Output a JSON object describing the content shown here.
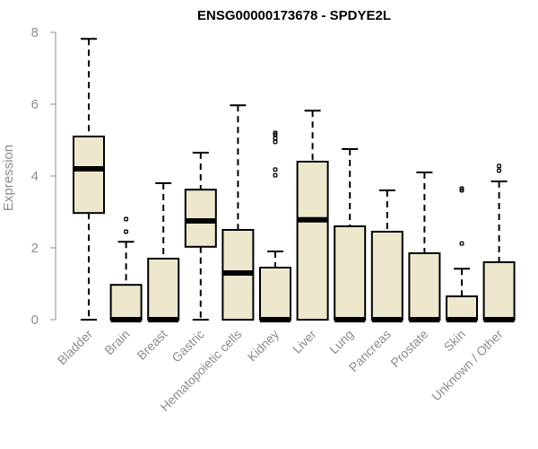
{
  "chart_data": {
    "type": "boxplot",
    "title": "ENSG00000173678 - SPDYE2L",
    "xlabel": "",
    "ylabel": "Expression",
    "ylim": [
      0,
      8
    ],
    "yticks": [
      0,
      2,
      4,
      6,
      8
    ],
    "categories": [
      "Bladder",
      "Brain",
      "Breast",
      "Gastric",
      "Hematopoietic cells",
      "Kidney",
      "Liver",
      "Lung",
      "Pancreas",
      "Prostate",
      "Skin",
      "Unknown / Other"
    ],
    "boxes": [
      {
        "min": 0,
        "q1": 2.97,
        "median": 4.2,
        "q3": 5.1,
        "max": 7.82,
        "outliers": []
      },
      {
        "min": 0,
        "q1": 0,
        "median": 0,
        "q3": 0.97,
        "max": 2.17,
        "outliers": [
          2.45,
          2.8
        ]
      },
      {
        "min": 0,
        "q1": 0,
        "median": 0,
        "q3": 1.7,
        "max": 3.8,
        "outliers": []
      },
      {
        "min": 0,
        "q1": 2.03,
        "median": 2.75,
        "q3": 3.62,
        "max": 4.65,
        "outliers": []
      },
      {
        "min": 0,
        "q1": 0,
        "median": 1.3,
        "q3": 2.5,
        "max": 5.97,
        "outliers": []
      },
      {
        "min": 0,
        "q1": 0,
        "median": 0,
        "q3": 1.45,
        "max": 1.9,
        "outliers": [
          4.02,
          4.18,
          4.95,
          5.05,
          5.15,
          5.2
        ]
      },
      {
        "min": 0,
        "q1": 0,
        "median": 2.78,
        "q3": 4.4,
        "max": 5.82,
        "outliers": []
      },
      {
        "min": 0,
        "q1": 0,
        "median": 0,
        "q3": 2.6,
        "max": 4.75,
        "outliers": []
      },
      {
        "min": 0,
        "q1": 0,
        "median": 0,
        "q3": 2.45,
        "max": 3.6,
        "outliers": []
      },
      {
        "min": 0,
        "q1": 0,
        "median": 0,
        "q3": 1.85,
        "max": 4.1,
        "outliers": []
      },
      {
        "min": 0,
        "q1": 0,
        "median": 0,
        "q3": 0.65,
        "max": 1.42,
        "outliers": [
          2.12,
          3.6,
          3.65
        ]
      },
      {
        "min": 0,
        "q1": 0,
        "median": 0,
        "q3": 1.6,
        "max": 3.85,
        "outliers": [
          4.15,
          4.28
        ]
      }
    ],
    "colors": {
      "box_fill": "#ede7cd",
      "line": "#000000",
      "axis": "#8c8c8c"
    }
  }
}
